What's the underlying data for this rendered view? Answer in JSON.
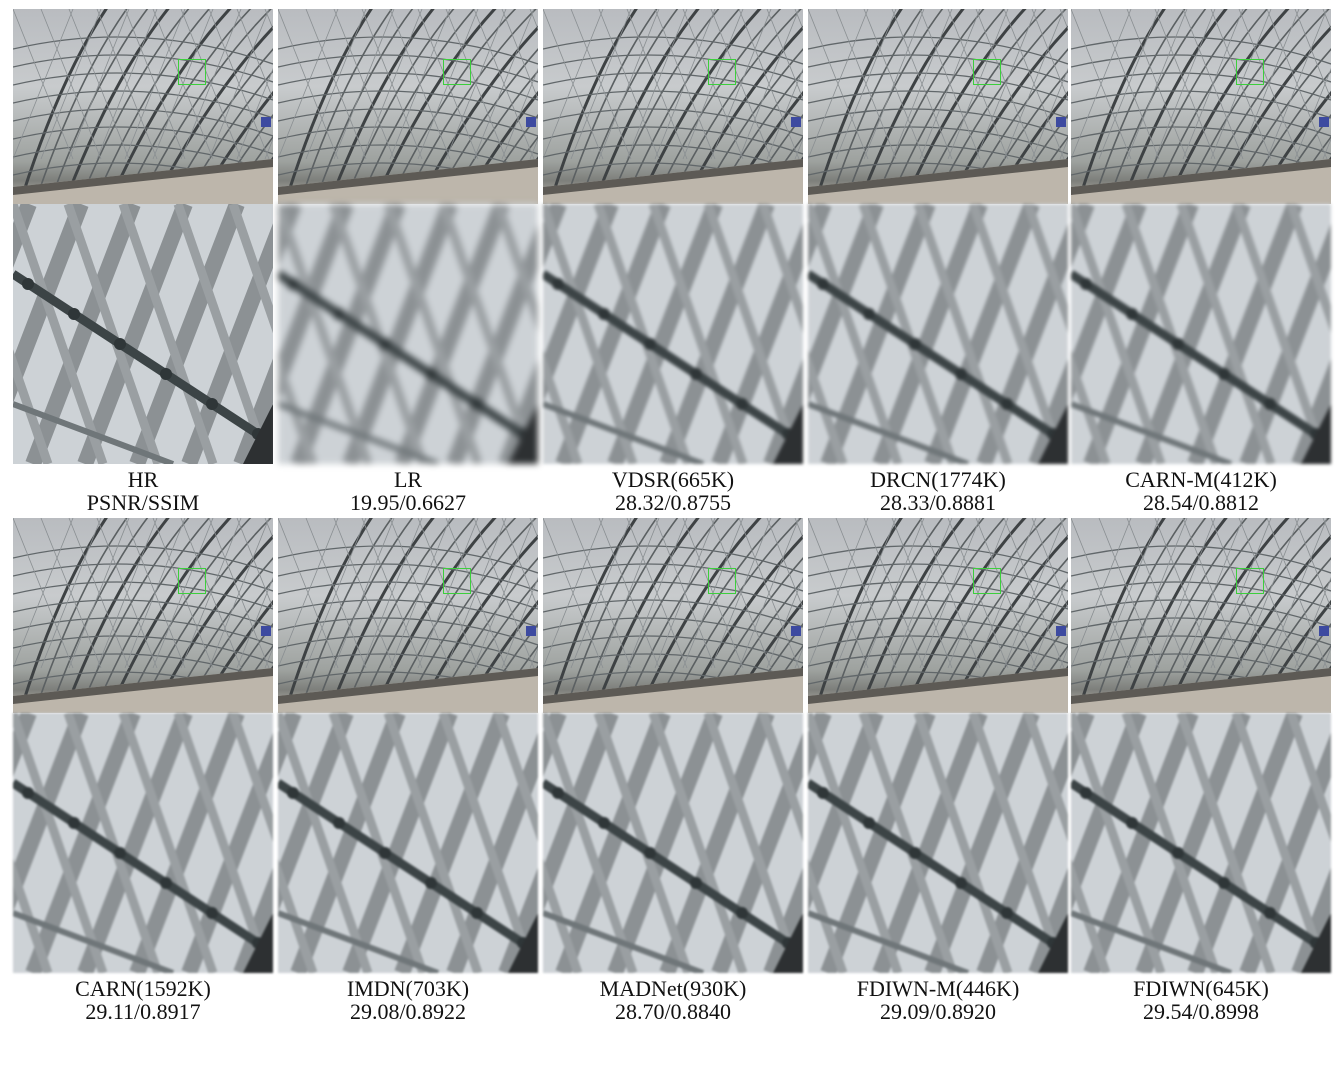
{
  "figure": {
    "panels": [
      {
        "method": "HR",
        "score": "PSNR/SSIM",
        "blur": "none"
      },
      {
        "method": "LR",
        "score": "19.95/0.6627",
        "blur": "strong"
      },
      {
        "method": "VDSR(665K)",
        "score": "28.32/0.8755",
        "blur": "mid"
      },
      {
        "method": "DRCN(1774K)",
        "score": "28.33/0.8881",
        "blur": "mid"
      },
      {
        "method": "CARN-M(412K)",
        "score": "28.54/0.8812",
        "blur": "mid"
      },
      {
        "method": "CARN(1592K)",
        "score": "29.11/0.8917",
        "blur": "light"
      },
      {
        "method": "IMDN(703K)",
        "score": "29.08/0.8922",
        "blur": "light"
      },
      {
        "method": "MADNet(930K)",
        "score": "28.70/0.8840",
        "blur": "light"
      },
      {
        "method": "FDIWN-M(446K)",
        "score": "29.09/0.8920",
        "blur": "light"
      },
      {
        "method": "FDIWN(645K)",
        "score": "29.54/0.8998",
        "blur": "light"
      }
    ],
    "roi_color": "#3ccf3c"
  }
}
